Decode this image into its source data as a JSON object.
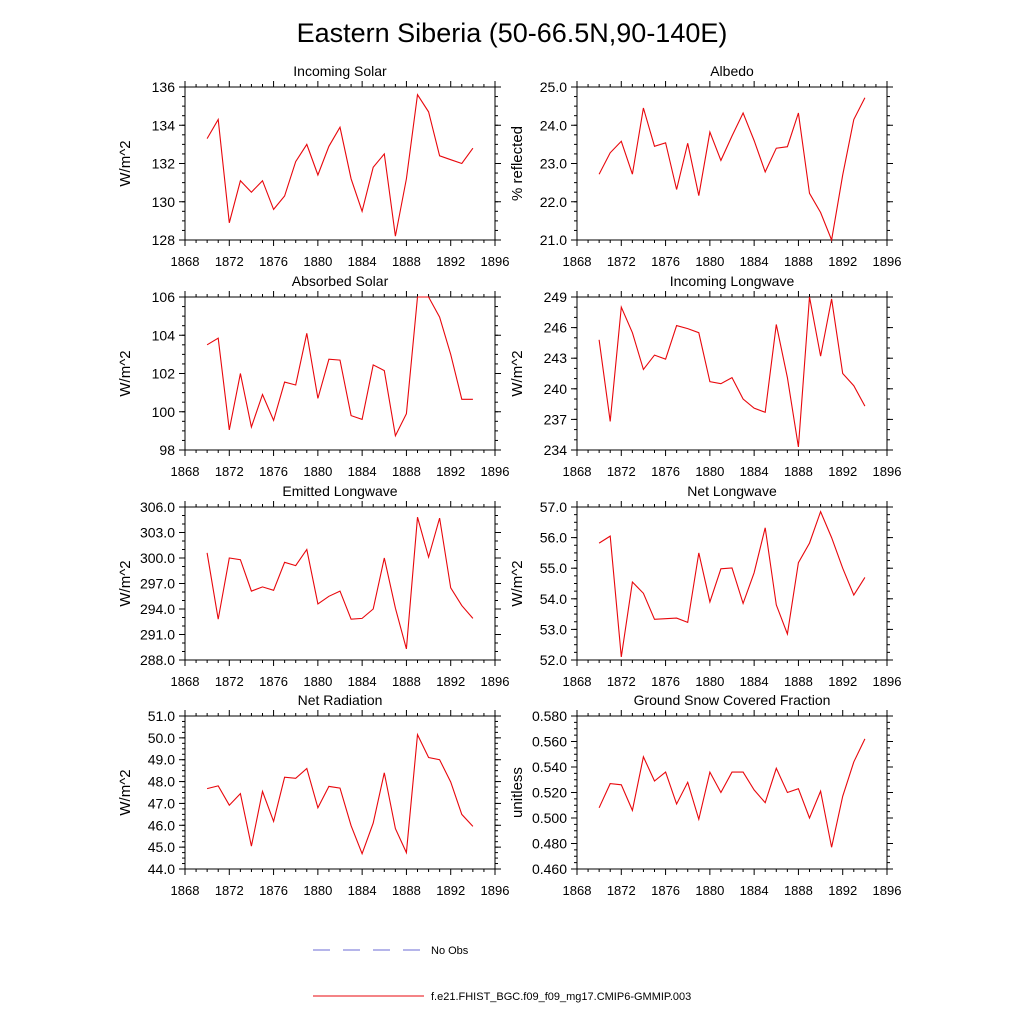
{
  "figure": {
    "title": "Eastern Siberia (50-66.5N,90-140E)",
    "legend": [
      {
        "label": "No Obs",
        "color": "#6b6bd6",
        "dash": true
      },
      {
        "label": "f.e21.FHIST_BGC.f09_f09_mg17.CMIP6-GMMIP.003",
        "color": "#e8070c",
        "dash": false
      }
    ]
  },
  "chart_data": [
    {
      "type": "line",
      "title": "Incoming Solar",
      "ylabel": "W/m^2",
      "xlim": [
        1868,
        1896
      ],
      "ylim": [
        128,
        136
      ],
      "xticks": [
        "1868",
        "1872",
        "1876",
        "1880",
        "1884",
        "1888",
        "1892",
        "1896"
      ],
      "yticks": [
        "128",
        "130",
        "132",
        "134",
        "136"
      ],
      "yminor_step": 0.5,
      "series": [
        {
          "name": "f.e21.FHIST_BGC.f09_f09_mg17.CMIP6-GMMIP.003",
          "color": "#e8070c",
          "x": [
            1870,
            1871,
            1872,
            1873,
            1874,
            1875,
            1876,
            1877,
            1878,
            1879,
            1880,
            1881,
            1882,
            1883,
            1884,
            1885,
            1886,
            1887,
            1888,
            1889,
            1890,
            1891,
            1892,
            1893,
            1894
          ],
          "values": [
            133.3,
            134.3,
            128.9,
            131.1,
            130.5,
            131.1,
            129.6,
            130.3,
            132.1,
            133.0,
            131.4,
            132.9,
            133.9,
            131.2,
            129.5,
            131.8,
            132.5,
            128.2,
            131.2,
            135.6,
            134.7,
            132.4,
            132.2,
            132.0,
            132.8
          ]
        }
      ]
    },
    {
      "type": "line",
      "title": "Albedo",
      "ylabel": "% reflected",
      "xlim": [
        1868,
        1896
      ],
      "ylim": [
        21,
        25
      ],
      "xticks": [
        "1868",
        "1872",
        "1876",
        "1880",
        "1884",
        "1888",
        "1892",
        "1896"
      ],
      "yticks": [
        "21.0",
        "22.0",
        "23.0",
        "24.0",
        "25.0"
      ],
      "yminor_step": 0.25,
      "series": [
        {
          "name": "f.e21.FHIST_BGC.f09_f09_mg17.CMIP6-GMMIP.003",
          "color": "#e8070c",
          "x": [
            1870,
            1871,
            1872,
            1873,
            1874,
            1875,
            1876,
            1877,
            1878,
            1879,
            1880,
            1881,
            1882,
            1883,
            1884,
            1885,
            1886,
            1887,
            1888,
            1889,
            1890,
            1891,
            1892,
            1893,
            1894
          ],
          "values": [
            22.72,
            23.28,
            23.58,
            22.72,
            24.45,
            23.45,
            23.54,
            22.32,
            23.53,
            22.16,
            23.82,
            23.08,
            23.72,
            24.32,
            23.6,
            22.78,
            23.4,
            23.44,
            24.32,
            22.22,
            21.72,
            21.0,
            22.7,
            24.15,
            24.72
          ]
        }
      ]
    },
    {
      "type": "line",
      "title": "Absorbed Solar",
      "ylabel": "W/m^2",
      "xlim": [
        1868,
        1896
      ],
      "ylim": [
        98,
        106
      ],
      "xticks": [
        "1868",
        "1872",
        "1876",
        "1880",
        "1884",
        "1888",
        "1892",
        "1896"
      ],
      "yticks": [
        "98",
        "100",
        "102",
        "104",
        "106"
      ],
      "yminor_step": 0.5,
      "series": [
        {
          "name": "f.e21.FHIST_BGC.f09_f09_mg17.CMIP6-GMMIP.003",
          "color": "#e8070c",
          "x": [
            1870,
            1871,
            1872,
            1873,
            1874,
            1875,
            1876,
            1877,
            1878,
            1879,
            1880,
            1881,
            1882,
            1883,
            1884,
            1885,
            1886,
            1887,
            1888,
            1889,
            1890,
            1891,
            1892,
            1893,
            1894
          ],
          "values": [
            103.5,
            103.85,
            99.05,
            102.0,
            99.2,
            100.9,
            99.55,
            101.55,
            101.4,
            104.1,
            100.7,
            102.75,
            102.7,
            99.8,
            99.6,
            102.45,
            102.15,
            98.75,
            99.9,
            106.0,
            106.0,
            104.95,
            103.0,
            100.65,
            100.65
          ]
        }
      ]
    },
    {
      "type": "line",
      "title": "Incoming Longwave",
      "ylabel": "W/m^2",
      "xlim": [
        1868,
        1896
      ],
      "ylim": [
        234,
        249
      ],
      "xticks": [
        "1868",
        "1872",
        "1876",
        "1880",
        "1884",
        "1888",
        "1892",
        "1896"
      ],
      "yticks": [
        "234",
        "237",
        "240",
        "243",
        "246",
        "249"
      ],
      "yminor_step": 1,
      "series": [
        {
          "name": "f.e21.FHIST_BGC.f09_f09_mg17.CMIP6-GMMIP.003",
          "color": "#e8070c",
          "x": [
            1870,
            1871,
            1872,
            1873,
            1874,
            1875,
            1876,
            1877,
            1878,
            1879,
            1880,
            1881,
            1882,
            1883,
            1884,
            1885,
            1886,
            1887,
            1888,
            1889,
            1890,
            1891,
            1892,
            1893,
            1894
          ],
          "values": [
            244.8,
            236.8,
            248.0,
            245.5,
            241.9,
            243.3,
            242.9,
            246.2,
            245.9,
            245.5,
            240.7,
            240.5,
            241.1,
            239.0,
            238.1,
            237.7,
            246.3,
            241.1,
            234.3,
            249.0,
            243.2,
            248.8,
            241.5,
            240.3,
            238.3
          ]
        }
      ]
    },
    {
      "type": "line",
      "title": "Emitted Longwave",
      "ylabel": "W/m^2",
      "xlim": [
        1868,
        1896
      ],
      "ylim": [
        288,
        306
      ],
      "xticks": [
        "1868",
        "1872",
        "1876",
        "1880",
        "1884",
        "1888",
        "1892",
        "1896"
      ],
      "yticks": [
        "288.0",
        "291.0",
        "294.0",
        "297.0",
        "300.0",
        "303.0",
        "306.0"
      ],
      "yminor_step": 1,
      "series": [
        {
          "name": "f.e21.FHIST_BGC.f09_f09_mg17.CMIP6-GMMIP.003",
          "color": "#e8070c",
          "x": [
            1870,
            1871,
            1872,
            1873,
            1874,
            1875,
            1876,
            1877,
            1878,
            1879,
            1880,
            1881,
            1882,
            1883,
            1884,
            1885,
            1886,
            1887,
            1888,
            1889,
            1890,
            1891,
            1892,
            1893,
            1894
          ],
          "values": [
            300.6,
            292.8,
            300.0,
            299.8,
            296.1,
            296.6,
            296.2,
            299.5,
            299.1,
            301.0,
            294.6,
            295.5,
            296.1,
            292.8,
            292.9,
            294.0,
            300.0,
            294.1,
            289.3,
            304.8,
            300.1,
            304.7,
            296.5,
            294.4,
            292.9
          ]
        }
      ]
    },
    {
      "type": "line",
      "title": "Net Longwave",
      "ylabel": "W/m^2",
      "xlim": [
        1868,
        1896
      ],
      "ylim": [
        52,
        57
      ],
      "xticks": [
        "1868",
        "1872",
        "1876",
        "1880",
        "1884",
        "1888",
        "1892",
        "1896"
      ],
      "yticks": [
        "52.0",
        "53.0",
        "54.0",
        "55.0",
        "56.0",
        "57.0"
      ],
      "yminor_step": 0.25,
      "series": [
        {
          "name": "f.e21.FHIST_BGC.f09_f09_mg17.CMIP6-GMMIP.003",
          "color": "#e8070c",
          "x": [
            1870,
            1871,
            1872,
            1873,
            1874,
            1875,
            1876,
            1877,
            1878,
            1879,
            1880,
            1881,
            1882,
            1883,
            1884,
            1885,
            1886,
            1887,
            1888,
            1889,
            1890,
            1891,
            1892,
            1893,
            1894
          ],
          "values": [
            55.82,
            56.05,
            52.1,
            54.55,
            54.18,
            53.33,
            53.35,
            53.37,
            53.23,
            55.5,
            53.9,
            54.98,
            55.01,
            53.85,
            54.85,
            56.32,
            53.8,
            52.85,
            55.18,
            55.82,
            56.85,
            56.0,
            55.0,
            54.12,
            54.7
          ]
        }
      ]
    },
    {
      "type": "line",
      "title": "Net Radiation",
      "ylabel": "W/m^2",
      "xlim": [
        1868,
        1896
      ],
      "ylim": [
        44,
        51
      ],
      "xticks": [
        "1868",
        "1872",
        "1876",
        "1880",
        "1884",
        "1888",
        "1892",
        "1896"
      ],
      "yticks": [
        "44.0",
        "45.0",
        "46.0",
        "47.0",
        "48.0",
        "49.0",
        "50.0",
        "51.0"
      ],
      "yminor_step": 0.25,
      "series": [
        {
          "name": "f.e21.FHIST_BGC.f09_f09_mg17.CMIP6-GMMIP.003",
          "color": "#e8070c",
          "x": [
            1870,
            1871,
            1872,
            1873,
            1874,
            1875,
            1876,
            1877,
            1878,
            1879,
            1880,
            1881,
            1882,
            1883,
            1884,
            1885,
            1886,
            1887,
            1888,
            1889,
            1890,
            1891,
            1892,
            1893,
            1894
          ],
          "values": [
            47.68,
            47.8,
            46.92,
            47.45,
            45.05,
            47.55,
            46.18,
            48.2,
            48.15,
            48.6,
            46.8,
            47.78,
            47.7,
            45.98,
            44.7,
            46.1,
            48.4,
            45.85,
            44.75,
            50.15,
            49.1,
            49.0,
            47.98,
            46.5,
            45.95
          ]
        }
      ]
    },
    {
      "type": "line",
      "title": "Ground Snow Covered Fraction",
      "ylabel": "unitless",
      "xlim": [
        1868,
        1896
      ],
      "ylim": [
        0.46,
        0.58
      ],
      "xticks": [
        "1868",
        "1872",
        "1876",
        "1880",
        "1884",
        "1888",
        "1892",
        "1896"
      ],
      "yticks": [
        "0.460",
        "0.480",
        "0.500",
        "0.520",
        "0.540",
        "0.560",
        "0.580"
      ],
      "yminor_step": 0.005,
      "series": [
        {
          "name": "f.e21.FHIST_BGC.f09_f09_mg17.CMIP6-GMMIP.003",
          "color": "#e8070c",
          "x": [
            1870,
            1871,
            1872,
            1873,
            1874,
            1875,
            1876,
            1877,
            1878,
            1879,
            1880,
            1881,
            1882,
            1883,
            1884,
            1885,
            1886,
            1887,
            1888,
            1889,
            1890,
            1891,
            1892,
            1893,
            1894
          ],
          "values": [
            0.508,
            0.527,
            0.526,
            0.506,
            0.548,
            0.529,
            0.536,
            0.511,
            0.528,
            0.499,
            0.536,
            0.52,
            0.536,
            0.536,
            0.522,
            0.512,
            0.539,
            0.52,
            0.523,
            0.5,
            0.521,
            0.477,
            0.517,
            0.544,
            0.562
          ]
        }
      ]
    }
  ]
}
